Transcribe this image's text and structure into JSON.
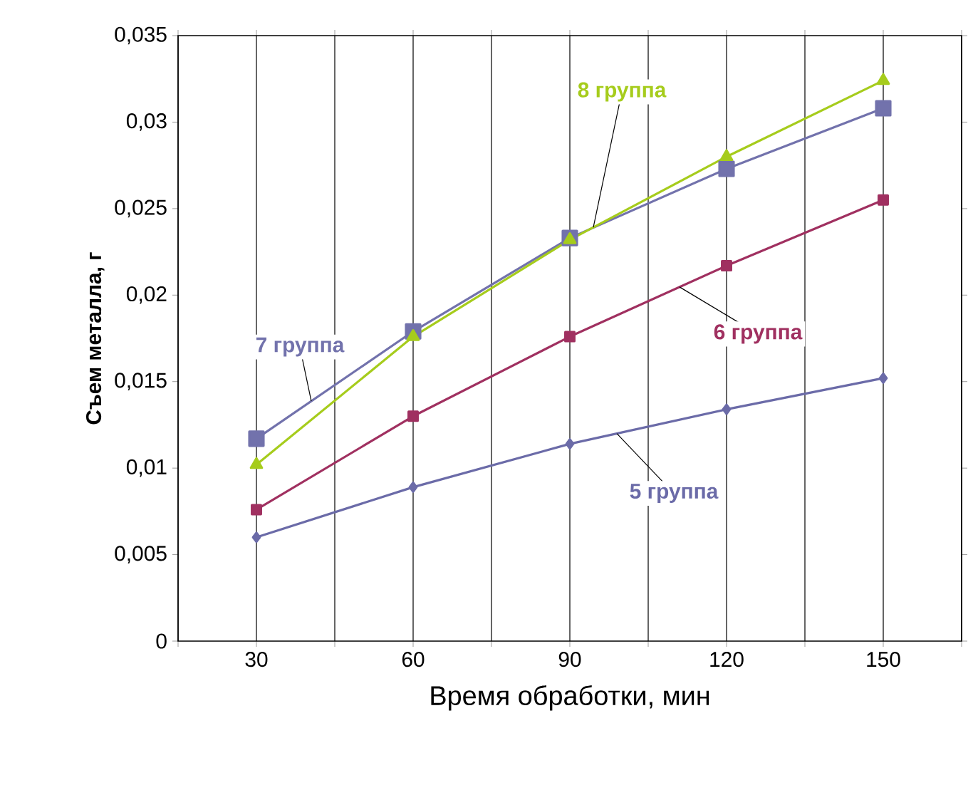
{
  "chart_data": {
    "type": "line",
    "xlabel": "Время обработки, мин",
    "ylabel": "Съем металла, г",
    "x": [
      30,
      60,
      90,
      120,
      150
    ],
    "series": [
      {
        "name": "5 группа",
        "color": "#6b6ba8",
        "marker": "diamond",
        "values": [
          0.006,
          0.0089,
          0.0114,
          0.0134,
          0.0152
        ]
      },
      {
        "name": "6 группа",
        "color": "#a03060",
        "marker": "square",
        "values": [
          0.0076,
          0.013,
          0.0176,
          0.0217,
          0.0255
        ]
      },
      {
        "name": "7 группа",
        "color": "#7272ac",
        "marker": "square",
        "values": [
          0.0117,
          0.0179,
          0.0233,
          0.0273,
          0.0308
        ]
      },
      {
        "name": "8 группа",
        "color": "#a6cc1c",
        "marker": "triangle",
        "values": [
          0.0102,
          0.0176,
          0.0232,
          0.028,
          0.0324
        ]
      }
    ],
    "xlim": [
      15,
      165
    ],
    "xticks": [
      {
        "value": 15,
        "label": null
      },
      30,
      {
        "value": 45,
        "label": null
      },
      60,
      {
        "value": 75,
        "label": null
      },
      90,
      {
        "value": 105,
        "label": null
      },
      120,
      {
        "value": 135,
        "label": null
      },
      150,
      {
        "value": 165,
        "label": null
      }
    ],
    "ylim": [
      0,
      0.035
    ],
    "yticks": [
      {
        "value": 0,
        "label": "0"
      },
      {
        "value": 0.005,
        "label": "0,005"
      },
      {
        "value": 0.01,
        "label": "0,01"
      },
      {
        "value": 0.015,
        "label": "0,015"
      },
      {
        "value": 0.02,
        "label": "0,02"
      },
      {
        "value": 0.025,
        "label": "0,025"
      },
      {
        "value": 0.03,
        "label": "0,03"
      },
      {
        "value": 0.035,
        "label": "0,035"
      }
    ],
    "grid": "x",
    "legend": false,
    "line_style": "solid"
  }
}
